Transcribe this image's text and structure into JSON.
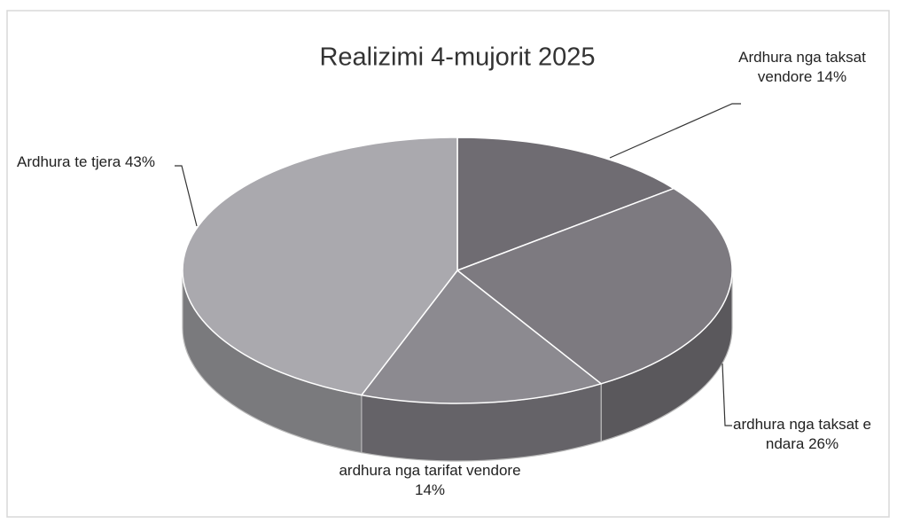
{
  "chart_data": {
    "type": "pie",
    "title": "Realizimi 4-mujorit 2025",
    "categories": [
      "Ardhura nga taksat vendore",
      "ardhura nga taksat e ndara",
      "ardhura nga tarifat vendore",
      "Ardhura te tjera"
    ],
    "values": [
      14,
      26,
      14,
      43
    ],
    "value_labels": [
      "14%",
      "26%",
      "14%",
      "43%"
    ],
    "colors": [
      "#6f6c72",
      "#7d7a80",
      "#8c8a90",
      "#aaa9ae"
    ]
  }
}
